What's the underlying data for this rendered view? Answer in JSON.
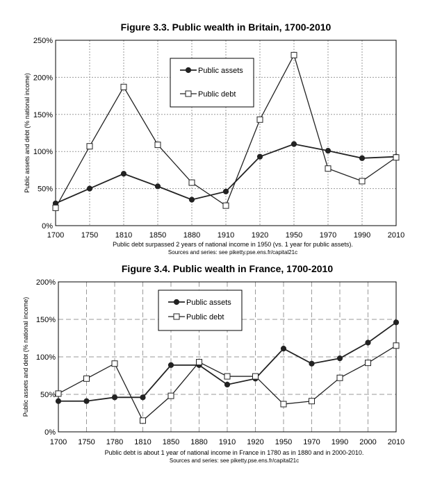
{
  "colors": {
    "line": "#222222",
    "grid": "#9a9a9a",
    "frame": "#000000",
    "background": "#ffffff"
  },
  "chart_data": [
    {
      "type": "line",
      "title": "Figure 3.3. Public wealth in Britain, 1700-2010",
      "ylabel": "Public assets and debt (% national income)",
      "xlabel": "",
      "note": "Public debt surpassed 2 years of national income in 1950 (vs. 1 year for public assets).",
      "source": "Sources and series: see piketty.pse.ens.fr/capital21c",
      "categories": [
        "1700",
        "1750",
        "1810",
        "1850",
        "1880",
        "1910",
        "1920",
        "1950",
        "1970",
        "1990",
        "2010"
      ],
      "ylim": [
        0,
        250
      ],
      "yticks": [
        0,
        50,
        100,
        150,
        200,
        250
      ],
      "ytick_labels": [
        "0%",
        "50%",
        "100%",
        "150%",
        "200%",
        "250%"
      ],
      "grid": "dotted",
      "legend": "top-center",
      "series": [
        {
          "name": "Public assets",
          "marker": "filled-circle",
          "values": [
            30,
            50,
            70,
            53,
            35,
            46,
            93,
            110,
            101,
            91,
            93
          ]
        },
        {
          "name": "Public debt",
          "marker": "open-square",
          "values": [
            24,
            107,
            187,
            109,
            58,
            27,
            143,
            230,
            77,
            60,
            92
          ]
        }
      ]
    },
    {
      "type": "line",
      "title": "Figure 3.4. Public wealth in France, 1700-2010",
      "ylabel": "Public assets and debt (% national income)",
      "xlabel": "",
      "note": "Public debt is about 1 year of national income in France in 1780 as in 1880 and in 2000-2010.",
      "source": "Sources and series: see piketty.pse.ens.fr/capital21c",
      "categories": [
        "1700",
        "1750",
        "1780",
        "1810",
        "1850",
        "1880",
        "1910",
        "1920",
        "1950",
        "1970",
        "1990",
        "2000",
        "2010"
      ],
      "ylim": [
        0,
        200
      ],
      "yticks": [
        0,
        50,
        100,
        150,
        200
      ],
      "ytick_labels": [
        "0%",
        "50%",
        "100%",
        "150%",
        "200%"
      ],
      "grid": "dashed",
      "legend": "top-center",
      "series": [
        {
          "name": "Public assets",
          "marker": "filled-circle",
          "values": [
            41,
            41,
            46,
            46,
            89,
            89,
            63,
            71,
            111,
            91,
            98,
            119,
            146
          ]
        },
        {
          "name": "Public debt",
          "marker": "open-square",
          "values": [
            51,
            71,
            91,
            15,
            48,
            93,
            74,
            74,
            37,
            41,
            72,
            92,
            115
          ]
        }
      ]
    }
  ]
}
